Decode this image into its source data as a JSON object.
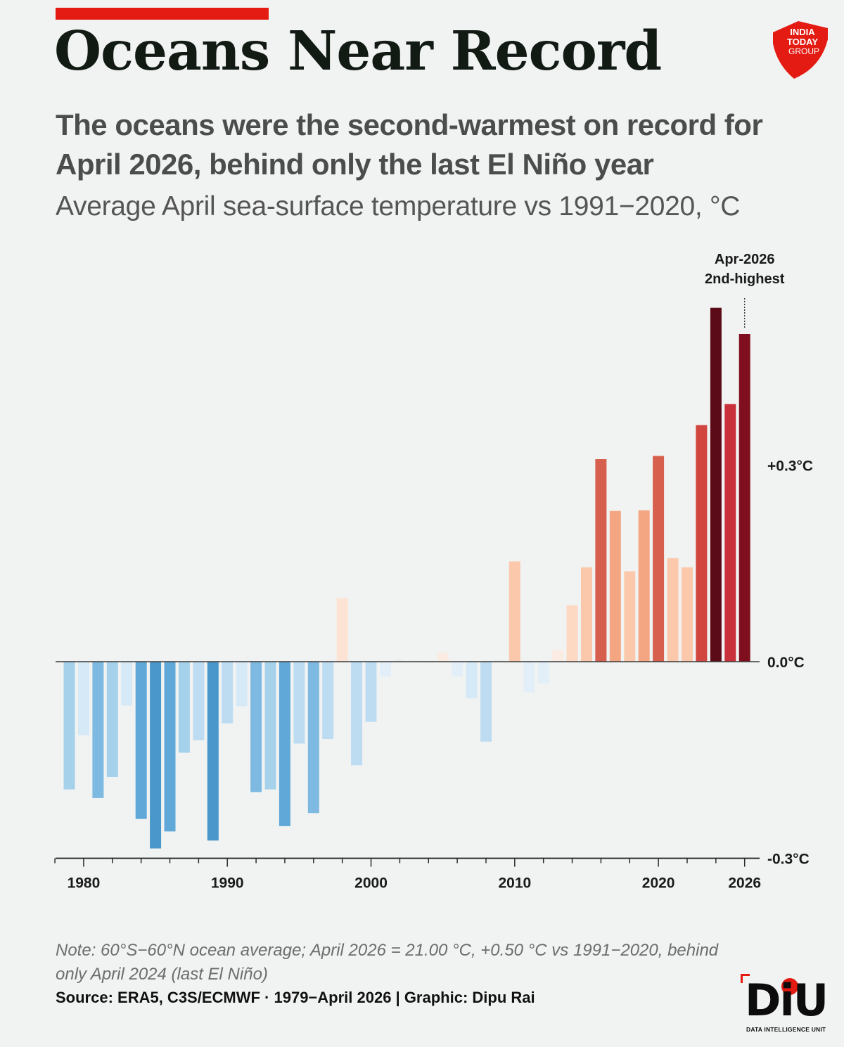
{
  "header": {
    "title": "Oceans Near Record",
    "subtitle": "The oceans were the second-warmest on record for April 2026, behind only the last El Niño year",
    "unit_line": "Average April sea-surface temperature vs 1991−2020, °C",
    "logo_text": [
      "INDIA",
      "TODAY",
      "GROUP"
    ]
  },
  "chart_data": {
    "type": "bar",
    "title": "",
    "xlabel": "",
    "ylabel": "",
    "x": [
      1979,
      1980,
      1981,
      1982,
      1983,
      1984,
      1985,
      1986,
      1987,
      1988,
      1989,
      1990,
      1991,
      1992,
      1993,
      1994,
      1995,
      1996,
      1997,
      1998,
      1999,
      2000,
      2001,
      2002,
      2003,
      2004,
      2005,
      2006,
      2007,
      2008,
      2009,
      2010,
      2011,
      2012,
      2013,
      2014,
      2015,
      2016,
      2017,
      2018,
      2019,
      2020,
      2021,
      2022,
      2023,
      2024,
      2025,
      2026
    ],
    "values": [
      -0.195,
      -0.112,
      -0.208,
      -0.176,
      -0.067,
      -0.24,
      -0.285,
      -0.259,
      -0.139,
      -0.12,
      -0.273,
      -0.094,
      -0.068,
      -0.199,
      -0.195,
      -0.251,
      -0.125,
      -0.231,
      -0.118,
      0.097,
      -0.158,
      -0.092,
      -0.023,
      0.005,
      0.002,
      0.0,
      0.014,
      -0.023,
      -0.056,
      -0.122,
      0.004,
      0.153,
      -0.047,
      -0.033,
      0.018,
      0.086,
      0.144,
      0.309,
      0.23,
      0.138,
      0.231,
      0.314,
      0.158,
      0.144,
      0.361,
      0.54,
      0.393,
      0.5
    ],
    "colors": [
      "#a5d1eb",
      "#d6e9f6",
      "#7db9e0",
      "#a5d1eb",
      "#d6e9f6",
      "#5fa8d8",
      "#4a97cb",
      "#5fa8d8",
      "#a5d1eb",
      "#bedcf1",
      "#4a97cb",
      "#bedcf1",
      "#d6e9f6",
      "#7db9e0",
      "#a5d1eb",
      "#5fa8d8",
      "#bedcf1",
      "#7db9e0",
      "#bedcf1",
      "#fde3d3",
      "#bedcf1",
      "#bedcf1",
      "#e3eff8",
      "#eef0ee",
      "#eef0ee",
      "#eef0ee",
      "#fbece3",
      "#e3eff8",
      "#d6e9f6",
      "#bedcf1",
      "#eef0ee",
      "#fcc8ac",
      "#e3eff8",
      "#e3eff8",
      "#fbece3",
      "#fdd8c3",
      "#fcc8ac",
      "#d6604d",
      "#f4a582",
      "#fcc8ac",
      "#f4a582",
      "#d6604d",
      "#fcc8ac",
      "#fcc8ac",
      "#d1463e",
      "#5b0a18",
      "#c8303a",
      "#7f0f1f"
    ],
    "ylim": [
      -0.3,
      0.55
    ],
    "y_ticks": [
      {
        "v": 0.3,
        "label": "+0.3°C"
      },
      {
        "v": 0.0,
        "label": "0.0°C"
      },
      {
        "v": -0.3,
        "label": "-0.3°C"
      }
    ],
    "x_tick_labels": [
      {
        "x": 1980,
        "label": "1980"
      },
      {
        "x": 1990,
        "label": "1990"
      },
      {
        "x": 2000,
        "label": "2000"
      },
      {
        "x": 2010,
        "label": "2010"
      },
      {
        "x": 2020,
        "label": "2020"
      },
      {
        "x": 2026,
        "label": "2026"
      }
    ],
    "annotation": {
      "x": 2026,
      "lines": [
        "Apr-2026",
        "2nd-highest"
      ]
    },
    "grid": false,
    "legend": "none"
  },
  "footer": {
    "note": "Note: 60°S−60°N ocean average; April 2026 = 21.00 °C, +0.50 °C vs 1991−2020, behind only April 2024 (last El Niño)",
    "source": "Source: ERA5, C3S/ECMWF · 1979−April 2026 | Graphic: Dipu Rai",
    "diu_mark": "DiU",
    "diu_sub": "DATA INTELLIGENCE UNIT"
  },
  "colors": {
    "accent": "#e31b12",
    "background": "#f1f3f2",
    "axis": "#2b2b2b"
  }
}
